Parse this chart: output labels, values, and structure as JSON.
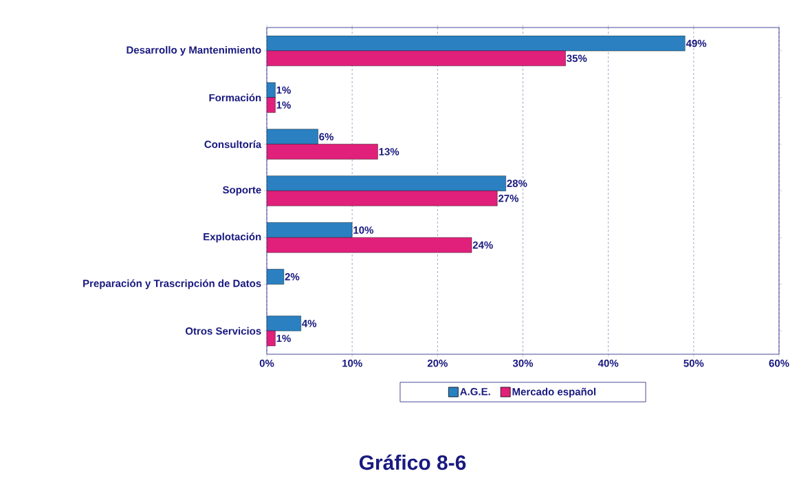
{
  "chart_data": {
    "type": "bar",
    "orientation": "horizontal",
    "title": "Gráfico 8-6",
    "categories": [
      "Desarrollo y Mantenimiento",
      "Formación",
      "Consultoría",
      "Soporte",
      "Explotación",
      "Preparación y Trascripción de Datos",
      "Otros Servicios"
    ],
    "series": [
      {
        "name": "A.G.E.",
        "color": "#2a80c0",
        "values": [
          49,
          1,
          6,
          28,
          10,
          2,
          4
        ],
        "value_labels": [
          "49%",
          "1%",
          "6%",
          "28%",
          "10%",
          "2%",
          "4%"
        ]
      },
      {
        "name": "Mercado español",
        "color": "#e0207a",
        "values": [
          35,
          1,
          13,
          27,
          24,
          null,
          1
        ],
        "value_labels": [
          "35%",
          "1%",
          "13%",
          "27%",
          "24%",
          null,
          "1%"
        ]
      }
    ],
    "xlim": [
      0,
      60
    ],
    "xticks": [
      {
        "value": 0,
        "label": "0%"
      },
      {
        "value": 10,
        "label": "10%"
      },
      {
        "value": 20,
        "label": "20%"
      },
      {
        "value": 30,
        "label": "30%"
      },
      {
        "value": 40,
        "label": "40%"
      },
      {
        "value": 50,
        "label": "50%"
      },
      {
        "value": 60,
        "label": "60%"
      }
    ],
    "grid": "x",
    "legend": "bottom"
  }
}
